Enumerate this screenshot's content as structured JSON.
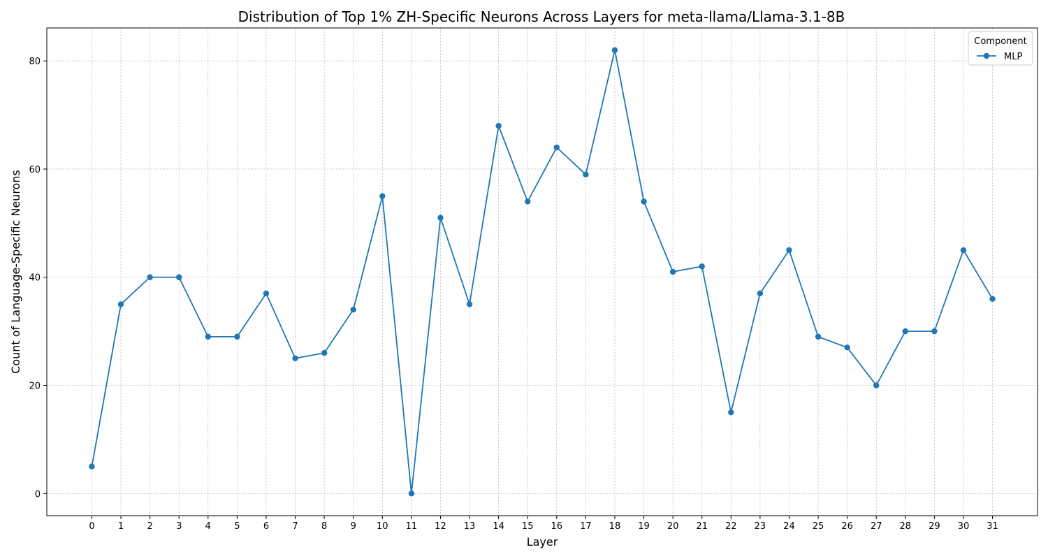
{
  "chart_data": {
    "type": "line",
    "title": "Distribution of Top 1% ZH-Specific Neurons Across Layers for meta-llama/Llama-3.1-8B",
    "xlabel": "Layer",
    "ylabel": "Count of Language-Specific Neurons",
    "x": [
      0,
      1,
      2,
      3,
      4,
      5,
      6,
      7,
      8,
      9,
      10,
      11,
      12,
      13,
      14,
      15,
      16,
      17,
      18,
      19,
      20,
      21,
      22,
      23,
      24,
      25,
      26,
      27,
      28,
      29,
      30,
      31
    ],
    "xticks": [
      "0",
      "1",
      "2",
      "3",
      "4",
      "5",
      "6",
      "7",
      "8",
      "9",
      "10",
      "11",
      "12",
      "13",
      "14",
      "15",
      "16",
      "17",
      "18",
      "19",
      "20",
      "21",
      "22",
      "23",
      "24",
      "25",
      "26",
      "27",
      "28",
      "29",
      "30",
      "31"
    ],
    "yticks": [
      "0",
      "20",
      "40",
      "60",
      "80"
    ],
    "ylim": [
      -4.1,
      86.1
    ],
    "xlim": [
      -1.55,
      32.55
    ],
    "grid": true,
    "series": [
      {
        "name": "MLP",
        "color": "#1f77b4",
        "marker": "circle",
        "values": [
          5,
          35,
          40,
          40,
          29,
          29,
          37,
          25,
          26,
          34,
          55,
          0,
          51,
          35,
          68,
          54,
          64,
          59,
          82,
          54,
          41,
          42,
          15,
          37,
          45,
          29,
          27,
          20,
          30,
          30,
          45,
          36
        ]
      }
    ],
    "legend": {
      "title": "Component",
      "placement": "top-right"
    }
  }
}
